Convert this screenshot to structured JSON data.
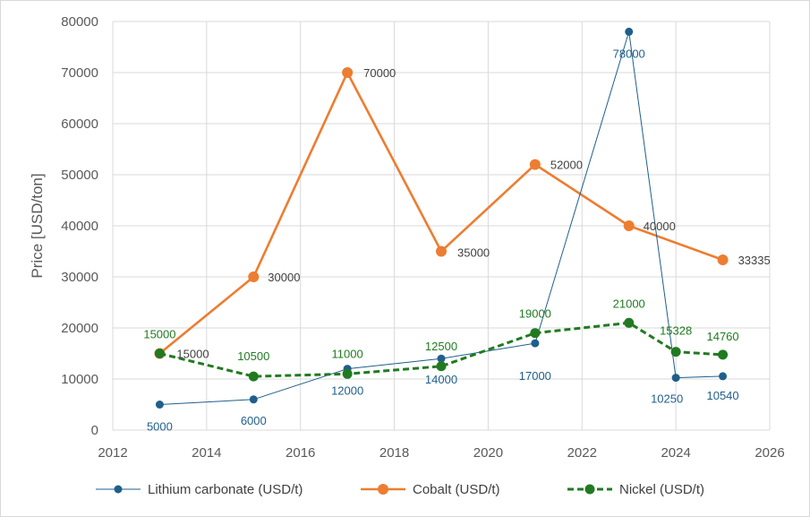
{
  "chart_data": {
    "type": "line",
    "title": "",
    "xlabel": "",
    "ylabel": "Price [USD/ton]",
    "xlim": [
      2012,
      2026
    ],
    "ylim": [
      0,
      80000
    ],
    "xticks": [
      2012,
      2014,
      2016,
      2018,
      2020,
      2022,
      2024,
      2026
    ],
    "yticks": [
      0,
      10000,
      20000,
      30000,
      40000,
      50000,
      60000,
      70000,
      80000
    ],
    "grid": true,
    "legend": "bottom",
    "series": [
      {
        "name": "Lithium carbonate (USD/t)",
        "color": "#1f5f8b",
        "x": [
          2013,
          2015,
          2017,
          2019,
          2021,
          2023,
          2024,
          2025
        ],
        "y": [
          5000,
          6000,
          12000,
          14000,
          17000,
          78000,
          10250,
          10540
        ],
        "labels": [
          "5000",
          "6000",
          "12000",
          "14000",
          "17000",
          "78000",
          "10250",
          "10540"
        ]
      },
      {
        "name": "Cobalt (USD/t)",
        "color": "#ed7d31",
        "x": [
          2013,
          2015,
          2017,
          2019,
          2021,
          2023,
          2025
        ],
        "y": [
          15000,
          30000,
          70000,
          35000,
          52000,
          40000,
          33335
        ],
        "labels": [
          "15000",
          "30000",
          "70000",
          "35000",
          "52000",
          "40000",
          "33335"
        ]
      },
      {
        "name": "Nickel (USD/t)",
        "color": "#217a21",
        "x": [
          2013,
          2015,
          2017,
          2019,
          2021,
          2023,
          2024,
          2025
        ],
        "y": [
          15000,
          10500,
          11000,
          12500,
          19000,
          21000,
          15328,
          14760
        ],
        "labels": [
          "15000",
          "10500",
          "11000",
          "12500",
          "19000",
          "21000",
          "15328",
          "14760"
        ]
      }
    ]
  }
}
